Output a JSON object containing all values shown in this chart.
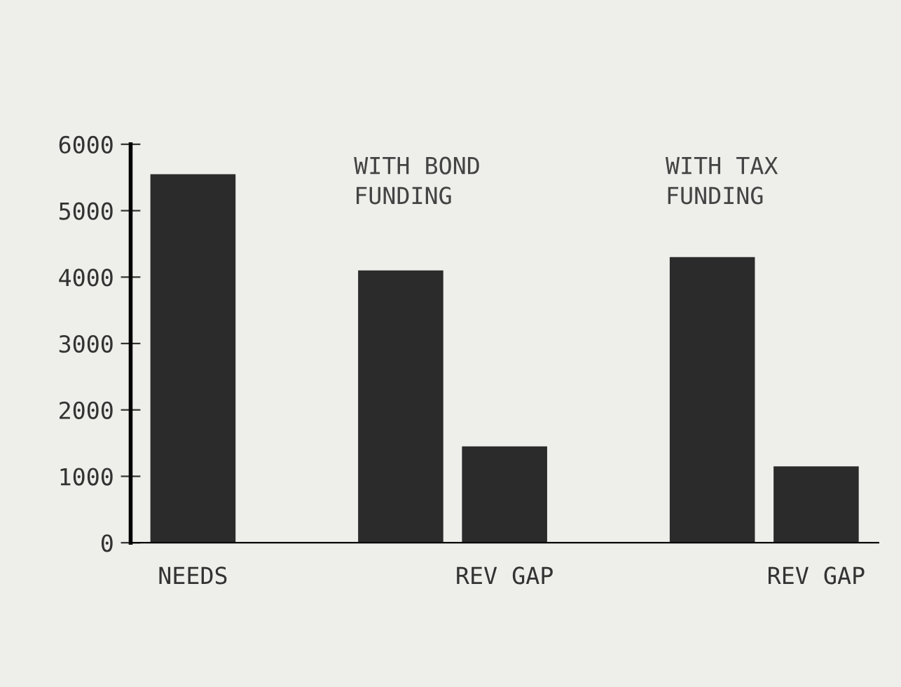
{
  "chart_data": {
    "type": "bar",
    "categories": [
      "NEEDS",
      null,
      null,
      "REV GAP",
      null,
      null,
      "REV GAP"
    ],
    "values": [
      5550,
      null,
      4100,
      1450,
      null,
      4300,
      1150
    ],
    "color": "#2b2b2b",
    "ylim": [
      0,
      6000
    ],
    "yticks": [
      0,
      1000,
      2000,
      3000,
      4000,
      5000,
      6000
    ],
    "annotations": [
      "WITH BOND\nFUNDING",
      "WITH TAX\nFUNDING"
    ],
    "grid": false
  }
}
